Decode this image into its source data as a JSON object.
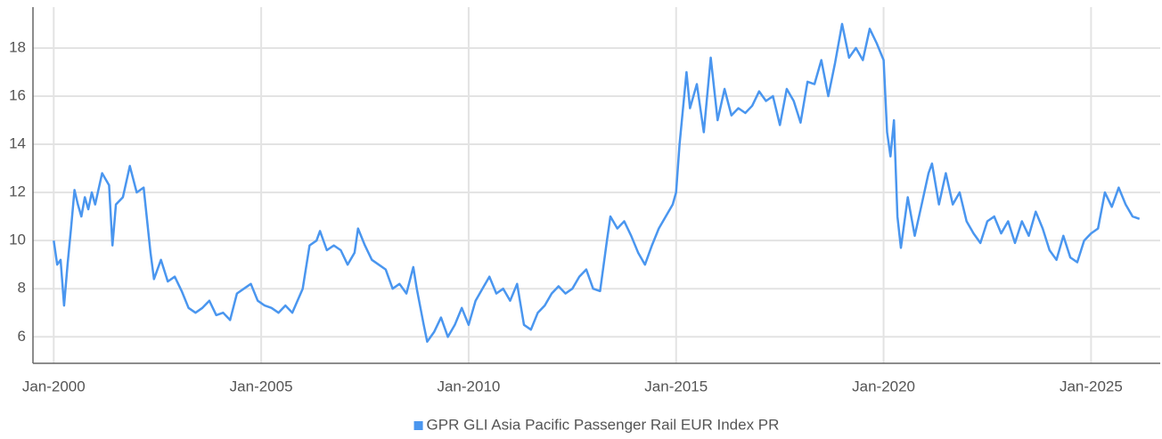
{
  "chart_data": {
    "type": "line",
    "x": [
      "2000-01",
      "2000-02",
      "2000-03",
      "2000-04",
      "2000-05",
      "2000-06",
      "2000-07",
      "2000-08",
      "2000-09",
      "2000-10",
      "2000-11",
      "2000-12",
      "2001-01",
      "2001-03",
      "2001-05",
      "2001-06",
      "2001-07",
      "2001-09",
      "2001-11",
      "2002-01",
      "2002-03",
      "2002-05",
      "2002-06",
      "2002-08",
      "2002-10",
      "2002-12",
      "2003-02",
      "2003-04",
      "2003-06",
      "2003-08",
      "2003-10",
      "2003-12",
      "2004-02",
      "2004-04",
      "2004-06",
      "2004-08",
      "2004-10",
      "2004-12",
      "2005-02",
      "2005-04",
      "2005-06",
      "2005-08",
      "2005-10",
      "2006-01",
      "2006-03",
      "2006-05",
      "2006-06",
      "2006-08",
      "2006-10",
      "2006-12",
      "2007-02",
      "2007-04",
      "2007-05",
      "2007-07",
      "2007-09",
      "2007-11",
      "2008-01",
      "2008-03",
      "2008-05",
      "2008-07",
      "2008-09",
      "2008-10",
      "2008-12",
      "2009-01",
      "2009-03",
      "2009-05",
      "2009-07",
      "2009-09",
      "2009-11",
      "2010-01",
      "2010-03",
      "2010-05",
      "2010-07",
      "2010-09",
      "2010-11",
      "2011-01",
      "2011-03",
      "2011-05",
      "2011-07",
      "2011-09",
      "2011-11",
      "2012-01",
      "2012-03",
      "2012-05",
      "2012-07",
      "2012-09",
      "2012-11",
      "2013-01",
      "2013-03",
      "2013-05",
      "2013-06",
      "2013-08",
      "2013-10",
      "2013-12",
      "2014-02",
      "2014-04",
      "2014-06",
      "2014-08",
      "2014-10",
      "2014-12",
      "2015-01",
      "2015-02",
      "2015-03",
      "2015-04",
      "2015-05",
      "2015-07",
      "2015-09",
      "2015-11",
      "2016-01",
      "2016-03",
      "2016-05",
      "2016-07",
      "2016-09",
      "2016-11",
      "2017-01",
      "2017-03",
      "2017-05",
      "2017-07",
      "2017-09",
      "2017-11",
      "2018-01",
      "2018-03",
      "2018-05",
      "2018-07",
      "2018-09",
      "2018-11",
      "2019-01",
      "2019-03",
      "2019-05",
      "2019-07",
      "2019-09",
      "2019-11",
      "2020-01",
      "2020-02",
      "2020-03",
      "2020-04",
      "2020-05",
      "2020-06",
      "2020-08",
      "2020-10",
      "2020-12",
      "2021-02",
      "2021-03",
      "2021-05",
      "2021-07",
      "2021-09",
      "2021-11",
      "2022-01",
      "2022-03",
      "2022-05",
      "2022-07",
      "2022-09",
      "2022-11",
      "2023-01",
      "2023-03",
      "2023-05",
      "2023-07",
      "2023-09",
      "2023-11",
      "2024-01",
      "2024-03",
      "2024-05",
      "2024-07",
      "2024-09",
      "2024-11",
      "2025-01",
      "2025-03",
      "2025-05",
      "2025-07",
      "2025-09",
      "2025-11",
      "2026-01",
      "2026-03"
    ],
    "series": [
      {
        "name": "GPR GLI Asia Pacific Passenger Rail EUR Index PR",
        "color": "#4a96ef",
        "values": [
          10.0,
          9.0,
          9.2,
          7.3,
          9.0,
          10.5,
          12.1,
          11.5,
          11.0,
          11.8,
          11.3,
          12.0,
          11.5,
          12.8,
          12.3,
          9.8,
          11.5,
          11.8,
          13.1,
          12.0,
          12.2,
          9.5,
          8.4,
          9.2,
          8.3,
          8.5,
          7.9,
          7.2,
          7.0,
          7.2,
          7.5,
          6.9,
          7.0,
          6.7,
          7.8,
          8.0,
          8.2,
          7.5,
          7.3,
          7.2,
          7.0,
          7.3,
          7.0,
          8.0,
          9.8,
          10.0,
          10.4,
          9.6,
          9.8,
          9.6,
          9.0,
          9.5,
          10.5,
          9.8,
          9.2,
          9.0,
          8.8,
          8.0,
          8.2,
          7.8,
          8.9,
          8.0,
          6.5,
          5.8,
          6.2,
          6.8,
          6.0,
          6.5,
          7.2,
          6.5,
          7.5,
          8.0,
          8.5,
          7.8,
          8.0,
          7.5,
          8.2,
          6.5,
          6.3,
          7.0,
          7.3,
          7.8,
          8.1,
          7.8,
          8.0,
          8.5,
          8.8,
          8.0,
          7.9,
          10.0,
          11.0,
          10.5,
          10.8,
          10.2,
          9.5,
          9.0,
          9.8,
          10.5,
          11.0,
          11.5,
          12.0,
          14.0,
          15.5,
          17.0,
          15.5,
          16.5,
          14.5,
          17.6,
          15.0,
          16.3,
          15.2,
          15.5,
          15.3,
          15.6,
          16.2,
          15.8,
          16.0,
          14.8,
          16.3,
          15.8,
          14.9,
          16.6,
          16.5,
          17.5,
          16.0,
          17.4,
          19.0,
          17.6,
          18.0,
          17.5,
          18.8,
          18.2,
          17.5,
          14.5,
          13.5,
          15.0,
          11.0,
          9.7,
          11.8,
          10.2,
          11.5,
          12.8,
          13.2,
          11.5,
          12.8,
          11.5,
          12.0,
          10.8,
          10.3,
          9.9,
          10.8,
          11.0,
          10.3,
          10.8,
          9.9,
          10.8,
          10.2,
          11.2,
          10.5,
          9.6,
          9.2,
          10.2,
          9.3,
          9.1,
          10.0,
          10.3,
          10.5,
          12.0,
          11.4,
          12.2,
          11.5,
          11.0,
          10.9
        ]
      }
    ],
    "xlim": [
      "1999-07",
      "2026-09"
    ],
    "xticks": [
      {
        "value": "2000-01",
        "label": "Jan-2000"
      },
      {
        "value": "2005-01",
        "label": "Jan-2005"
      },
      {
        "value": "2010-01",
        "label": "Jan-2010"
      },
      {
        "value": "2015-01",
        "label": "Jan-2015"
      },
      {
        "value": "2020-01",
        "label": "Jan-2020"
      },
      {
        "value": "2025-01",
        "label": "Jan-2025"
      }
    ],
    "ylim": [
      4.9,
      19.7
    ],
    "yticks": [
      6,
      8,
      10,
      12,
      14,
      16,
      18
    ],
    "grid": true,
    "legend": "bottom"
  }
}
